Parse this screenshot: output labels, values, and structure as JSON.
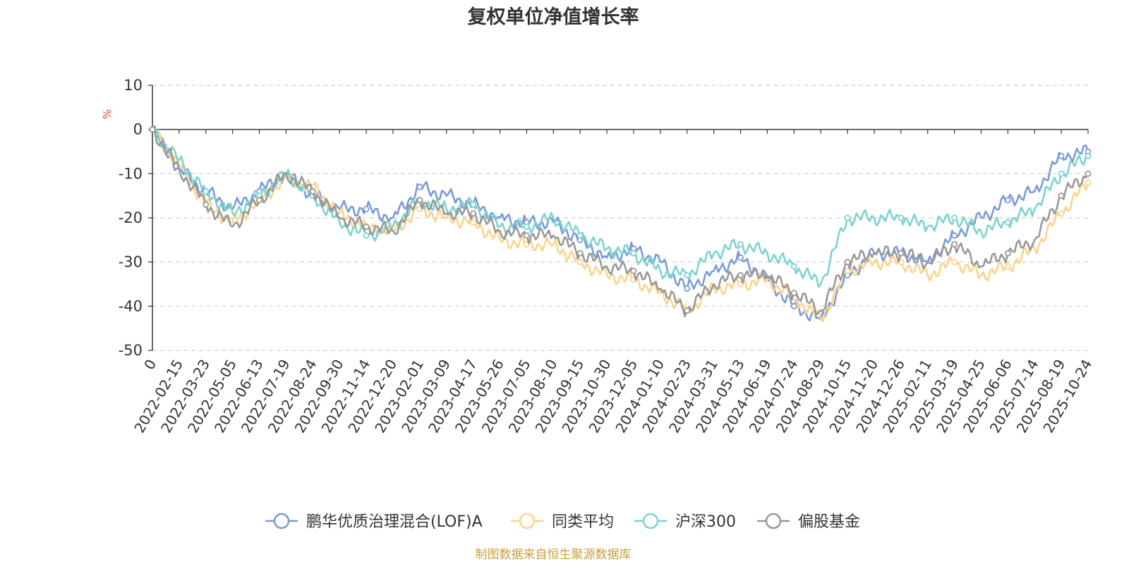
{
  "chart_data": {
    "type": "line",
    "title": "复权单位净值增长率",
    "ylabel": "%",
    "xlabel": "",
    "ylim": [
      -50,
      10
    ],
    "y_ticks": [
      10,
      0,
      -10,
      -20,
      -30,
      -40,
      -50
    ],
    "categories": [
      "0",
      "2022-02-15",
      "2022-03-23",
      "2022-05-05",
      "2022-06-13",
      "2022-07-19",
      "2022-08-24",
      "2022-09-30",
      "2022-11-14",
      "2022-12-20",
      "2023-02-01",
      "2023-03-09",
      "2023-04-17",
      "2023-05-26",
      "2023-07-05",
      "2023-08-10",
      "2023-09-15",
      "2023-10-30",
      "2023-12-05",
      "2024-01-10",
      "2024-02-23",
      "2024-03-31",
      "2024-05-13",
      "2024-06-19",
      "2024-07-24",
      "2024-08-29",
      "2024-10-15",
      "2024-11-20",
      "2024-12-26",
      "2025-02-11",
      "2025-03-19",
      "2025-04-25",
      "2025-06-06",
      "2025-07-14",
      "2025-08-19",
      "2025-10-24"
    ],
    "grid": true,
    "legend_position": "bottom",
    "series": [
      {
        "name": "鹏华优质治理混合(LOF)A",
        "color": "#7b9bd6",
        "values": [
          0,
          -9,
          -14,
          -18,
          -14,
          -10,
          -15,
          -18,
          -18,
          -20,
          -13,
          -15,
          -17,
          -20,
          -21,
          -21,
          -25,
          -29,
          -27,
          -30,
          -36,
          -32,
          -29,
          -34,
          -40,
          -43,
          -33,
          -28,
          -28,
          -30,
          -24,
          -20,
          -16,
          -14,
          -6,
          -5
        ]
      },
      {
        "name": "同类平均",
        "color": "#fcd38c",
        "values": [
          0,
          -8,
          -17,
          -21,
          -16,
          -11,
          -13,
          -19,
          -22,
          -23,
          -18,
          -20,
          -21,
          -25,
          -26,
          -26,
          -30,
          -33,
          -34,
          -37,
          -41,
          -36,
          -35,
          -34,
          -38,
          -43,
          -32,
          -30,
          -30,
          -33,
          -30,
          -33,
          -31,
          -27,
          -19,
          -12
        ]
      },
      {
        "name": "沪深300",
        "color": "#7dd3d3",
        "values": [
          0,
          -7,
          -14,
          -19,
          -15,
          -10,
          -15,
          -21,
          -24,
          -22,
          -16,
          -18,
          -17,
          -22,
          -22,
          -20,
          -24,
          -27,
          -28,
          -32,
          -33,
          -28,
          -26,
          -28,
          -31,
          -35,
          -20,
          -20,
          -20,
          -22,
          -20,
          -23,
          -21,
          -18,
          -10,
          -6
        ]
      },
      {
        "name": "偏股基金",
        "color": "#999999",
        "values": [
          0,
          -9,
          -17,
          -22,
          -16,
          -10,
          -14,
          -20,
          -22,
          -23,
          -16,
          -19,
          -19,
          -23,
          -24,
          -24,
          -28,
          -31,
          -32,
          -36,
          -41,
          -35,
          -33,
          -33,
          -37,
          -41,
          -30,
          -28,
          -28,
          -30,
          -26,
          -31,
          -28,
          -25,
          -15,
          -10
        ]
      }
    ]
  },
  "footer": {
    "source": "制图数据来自恒生聚源数据库"
  }
}
